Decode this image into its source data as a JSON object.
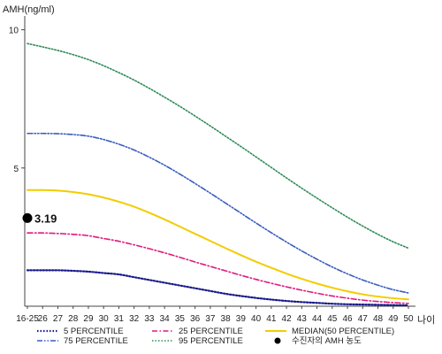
{
  "chart_data": {
    "type": "line",
    "ylabel": "AMH(ng/ml)",
    "xlabel": "나이",
    "ylim": [
      0,
      10.5
    ],
    "yticks": [
      5,
      10
    ],
    "grid": false,
    "categories": [
      "16-25",
      "26",
      "27",
      "28",
      "29",
      "30",
      "31",
      "32",
      "33",
      "34",
      "35",
      "36",
      "37",
      "38",
      "39",
      "40",
      "41",
      "42",
      "43",
      "44",
      "45",
      "46",
      "47",
      "48",
      "49",
      "50"
    ],
    "series": [
      {
        "name": "5 PERCENTILE",
        "color": "#1a1a8c",
        "dash": "dotted",
        "width": 2.2,
        "values": [
          1.3,
          1.3,
          1.3,
          1.28,
          1.25,
          1.2,
          1.15,
          1.05,
          0.95,
          0.85,
          0.75,
          0.65,
          0.55,
          0.45,
          0.37,
          0.3,
          0.24,
          0.19,
          0.15,
          0.12,
          0.09,
          0.07,
          0.06,
          0.05,
          0.04,
          0.03
        ]
      },
      {
        "name": "25 PERCENTILE",
        "color": "#e0197d",
        "dash": "dashdot",
        "width": 1.6,
        "values": [
          2.65,
          2.65,
          2.63,
          2.6,
          2.55,
          2.45,
          2.35,
          2.22,
          2.08,
          1.93,
          1.77,
          1.6,
          1.44,
          1.28,
          1.12,
          0.97,
          0.83,
          0.7,
          0.58,
          0.47,
          0.37,
          0.29,
          0.22,
          0.17,
          0.13,
          0.1
        ]
      },
      {
        "name": "MEDIAN(50 PERCENTILE)",
        "color": "#f2cc00",
        "dash": "solid",
        "width": 2,
        "values": [
          4.2,
          4.2,
          4.18,
          4.13,
          4.05,
          3.93,
          3.78,
          3.6,
          3.38,
          3.14,
          2.88,
          2.62,
          2.36,
          2.1,
          1.85,
          1.61,
          1.39,
          1.18,
          0.99,
          0.82,
          0.67,
          0.54,
          0.43,
          0.35,
          0.29,
          0.25
        ]
      },
      {
        "name": "75 PERCENTILE",
        "color": "#3a5dbf",
        "dash": "dashdotdot",
        "width": 1.6,
        "values": [
          6.25,
          6.25,
          6.24,
          6.21,
          6.15,
          6.03,
          5.86,
          5.65,
          5.39,
          5.1,
          4.78,
          4.44,
          4.09,
          3.73,
          3.37,
          3.01,
          2.66,
          2.32,
          2.0,
          1.7,
          1.42,
          1.17,
          0.95,
          0.76,
          0.6,
          0.48
        ]
      },
      {
        "name": "95 PERCENTILE",
        "color": "#2e8b57",
        "dash": "dotted",
        "width": 1.6,
        "values": [
          9.5,
          9.38,
          9.25,
          9.1,
          8.92,
          8.7,
          8.45,
          8.18,
          7.88,
          7.56,
          7.23,
          6.88,
          6.52,
          6.15,
          5.78,
          5.4,
          5.02,
          4.64,
          4.27,
          3.91,
          3.56,
          3.22,
          2.9,
          2.6,
          2.33,
          2.1
        ]
      }
    ],
    "marker": {
      "name": "수진자의 AMH 농도",
      "category": "16-25",
      "value": 3.19,
      "label": "3.19",
      "color": "#000000"
    },
    "legend": {
      "placement": "bottom",
      "columns": [
        [
          "5 PERCENTILE",
          "75 PERCENTILE"
        ],
        [
          "25 PERCENTILE",
          "95 PERCENTILE"
        ],
        [
          "MEDIAN(50 PERCENTILE)",
          "수진자의 AMH 농도"
        ]
      ]
    }
  }
}
